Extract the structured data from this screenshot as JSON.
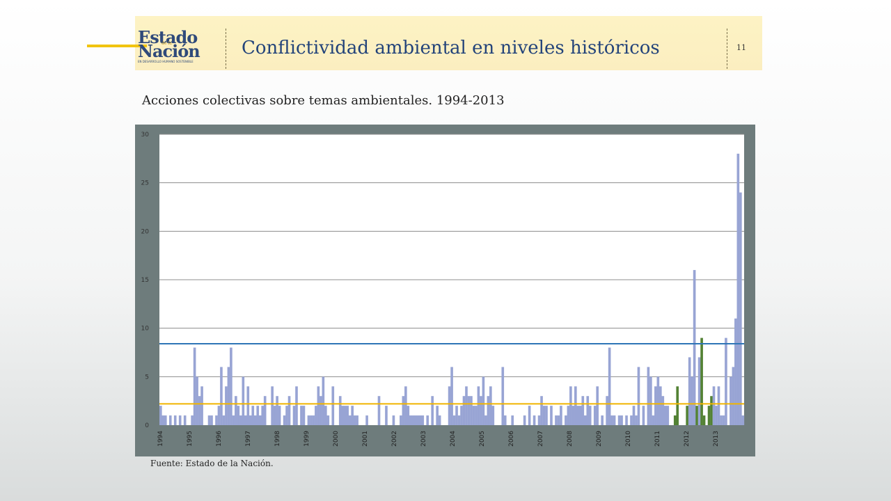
{
  "header": {
    "logo_line1": "Estado",
    "logo_de": "de la",
    "logo_line2": "Nación",
    "logo_tagline": "EN DESARROLLO HUMANO SOSTENIBLE",
    "title": "Conflictividad ambiental en niveles históricos",
    "page_number": "11"
  },
  "subtitle": "Acciones colectivas sobre temas ambientales. 1994-2013",
  "source": "Fuente: Estado de la Nación.",
  "colors": {
    "accent": "#f1c40f",
    "title_text": "#23437a",
    "bar_default": "#98a4d4",
    "bar_highlight": "#538234",
    "mean_line": "#f0b400",
    "threshold_line": "#2e75b6",
    "plot_frame": "#6e7c7c"
  },
  "chart_data": {
    "type": "bar",
    "title": "",
    "xlabel": "",
    "ylabel": "",
    "ylim": [
      0,
      30
    ],
    "yticks": [
      0,
      5,
      10,
      15,
      20,
      25,
      30
    ],
    "x_tick_labels": [
      "1994",
      "1995",
      "1996",
      "1997",
      "1998",
      "1999",
      "2000",
      "2001",
      "2002",
      "2003",
      "2004",
      "2005",
      "2006",
      "2007",
      "2008",
      "2009",
      "2010",
      "2011",
      "2012",
      "2013"
    ],
    "grid": true,
    "frequency": "monthly",
    "values": [
      2,
      1,
      1,
      0,
      1,
      0,
      1,
      0,
      1,
      0,
      1,
      0,
      0,
      1,
      8,
      5,
      3,
      4,
      0,
      0,
      1,
      1,
      0,
      1,
      2,
      6,
      1,
      4,
      6,
      8,
      1,
      3,
      2,
      1,
      5,
      1,
      4,
      1,
      2,
      1,
      2,
      1,
      2,
      3,
      0,
      0,
      4,
      2,
      3,
      2,
      0,
      1,
      2,
      3,
      0,
      2,
      4,
      0,
      2,
      2,
      0,
      1,
      1,
      1,
      2,
      4,
      3,
      5,
      2,
      1,
      0,
      4,
      0,
      0,
      3,
      2,
      2,
      2,
      1,
      2,
      1,
      1,
      0,
      0,
      0,
      1,
      0,
      0,
      0,
      0,
      3,
      0,
      0,
      2,
      0,
      0,
      1,
      0,
      0,
      1,
      3,
      4,
      2,
      1,
      1,
      1,
      1,
      1,
      1,
      0,
      1,
      0,
      3,
      0,
      2,
      1,
      0,
      0,
      0,
      4,
      6,
      1,
      2,
      1,
      2,
      3,
      4,
      3,
      3,
      2,
      2,
      4,
      3,
      5,
      1,
      3,
      4,
      2,
      0,
      0,
      0,
      6,
      1,
      0,
      0,
      1,
      0,
      0,
      0,
      0,
      1,
      0,
      2,
      0,
      1,
      0,
      1,
      3,
      2,
      2,
      0,
      2,
      0,
      1,
      1,
      2,
      0,
      1,
      2,
      4,
      2,
      4,
      2,
      2,
      3,
      1,
      3,
      2,
      0,
      2,
      4,
      0,
      1,
      0,
      3,
      8,
      1,
      1,
      0,
      1,
      1,
      0,
      1,
      0,
      1,
      2,
      1,
      6,
      0,
      2,
      0,
      6,
      5,
      1,
      4,
      5,
      4,
      3,
      2,
      2,
      0,
      0,
      1,
      4,
      0,
      0,
      0,
      2,
      7,
      5,
      16,
      2,
      7,
      9,
      1,
      0,
      2,
      3,
      4,
      2,
      4,
      1,
      1,
      9,
      0,
      5,
      6,
      11,
      28,
      24,
      1
    ],
    "highlight_indices": [
      212,
      213,
      214,
      216,
      217,
      221,
      223,
      224,
      225,
      226,
      227
    ],
    "reference_lines": [
      {
        "value": 8.4,
        "color": "#2e75b6"
      },
      {
        "value": 2.2,
        "color": "#f0b400"
      }
    ]
  }
}
